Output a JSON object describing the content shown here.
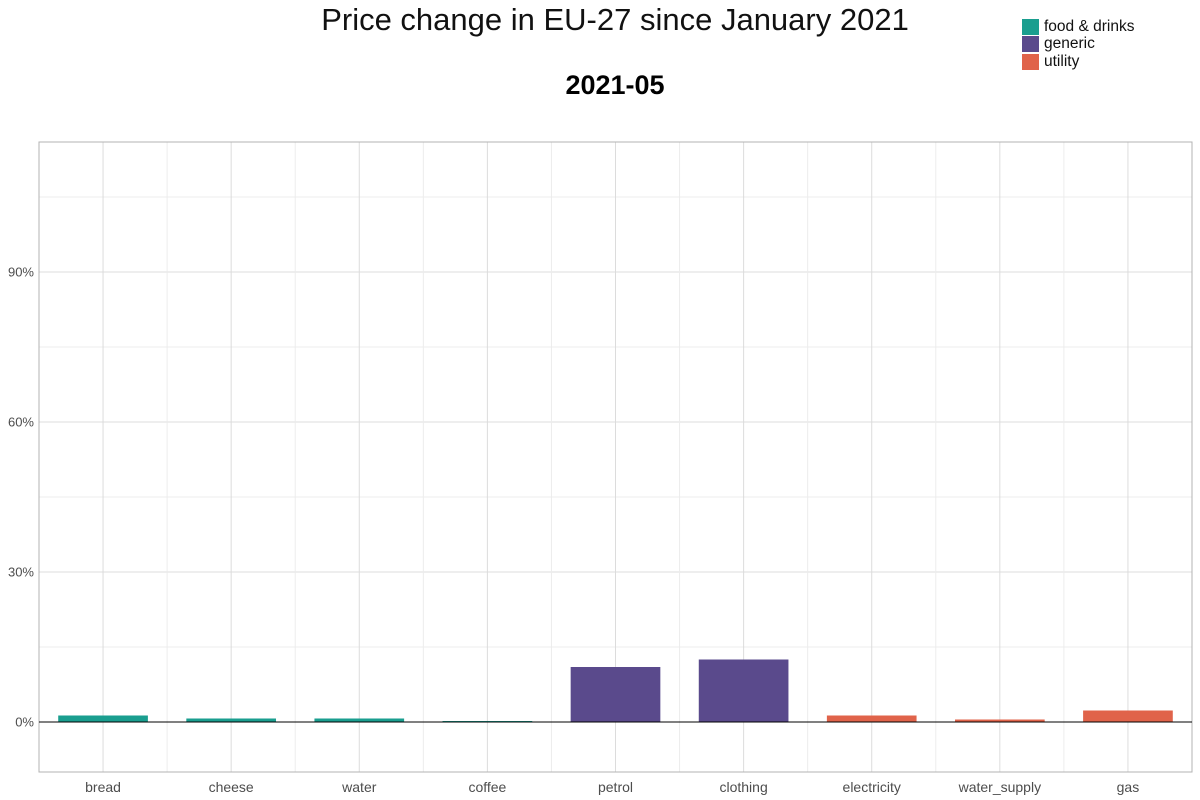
{
  "chart_data": {
    "type": "bar",
    "title": "Price change in EU-27 since January 2021",
    "subtitle": "2021-05",
    "xlabel": "",
    "ylabel": "",
    "categories": [
      "bread",
      "cheese",
      "water",
      "coffee",
      "petrol",
      "clothing",
      "electricity",
      "water_supply",
      "gas"
    ],
    "values": [
      1.3,
      0.7,
      0.7,
      0.2,
      11.0,
      12.5,
      1.3,
      0.5,
      2.3
    ],
    "groups": [
      "food & drinks",
      "food & drinks",
      "food & drinks",
      "food & drinks",
      "generic",
      "generic",
      "utility",
      "utility",
      "utility"
    ],
    "unit": "%",
    "ylim": [
      -10,
      116
    ],
    "yticks": [
      0,
      30,
      60,
      90
    ],
    "ytick_labels": [
      "0%",
      "30%",
      "60%",
      "90%"
    ],
    "grid": true,
    "legend": {
      "position": "top-right",
      "items": [
        {
          "name": "food & drinks",
          "color": "#1a9e8f"
        },
        {
          "name": "generic",
          "color": "#5a4a8c"
        },
        {
          "name": "utility",
          "color": "#e0634a"
        }
      ]
    }
  }
}
